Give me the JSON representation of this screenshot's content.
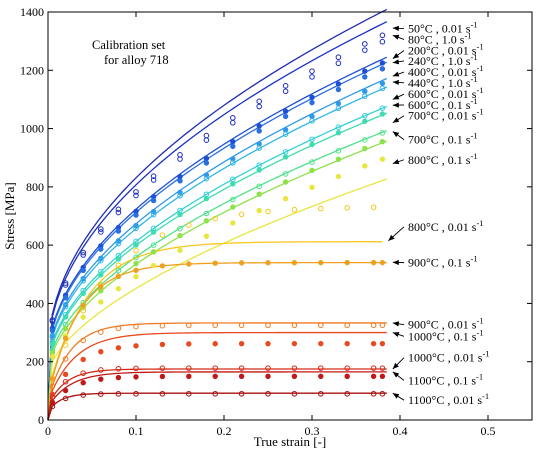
{
  "chart_data": {
    "type": "line",
    "title": "",
    "xlabel": "True strain [-]",
    "ylabel": "Stress [MPa]",
    "xlim": [
      0,
      0.55
    ],
    "ylim": [
      0,
      1400
    ],
    "xticks": [
      0,
      0.1,
      0.2,
      0.3,
      0.4,
      0.5
    ],
    "xtick_labels": [
      "0",
      "0.1",
      "0.2",
      "0.3",
      "0.4",
      "0.5"
    ],
    "yticks": [
      0,
      200,
      400,
      600,
      800,
      1000,
      1200,
      1400
    ],
    "ytick_labels": [
      "0",
      "200",
      "400",
      "600",
      "800",
      "1000",
      "1200",
      "1400"
    ],
    "grid": false,
    "legend": "annotations right",
    "note_lines": [
      "Calibration set",
      "for alloy 718"
    ],
    "series": [
      {
        "name": "50°C , 0.01 s-1",
        "label_main": "50°C , 0.01 s",
        "label_sup": "-1",
        "color": "#1f2bb0",
        "marker": "open",
        "model": {
          "type": "power",
          "s0": 230,
          "k": 1900,
          "n": 0.5
        },
        "model_end": [
          0.385,
          1345
        ],
        "exp_x": [
          0.005,
          0.02,
          0.04,
          0.06,
          0.08,
          0.1,
          0.12,
          0.15,
          0.18,
          0.21,
          0.24,
          0.27,
          0.3,
          0.33,
          0.36,
          0.38
        ],
        "exp_end": 1320,
        "label_y": 1343
      },
      {
        "name": "80°C , 1.0 s-1",
        "label_main": "80°C , 1.0 s",
        "label_sup": "-1",
        "color": "#1830c8",
        "marker": "open",
        "model": {
          "type": "power",
          "s0": 225,
          "k": 1840,
          "n": 0.5
        },
        "model_end": [
          0.385,
          1320
        ],
        "exp_x": [
          0.005,
          0.02,
          0.04,
          0.06,
          0.08,
          0.1,
          0.12,
          0.15,
          0.18,
          0.21,
          0.24,
          0.27,
          0.3,
          0.33,
          0.36,
          0.38
        ],
        "exp_end": 1298,
        "label_y": 1306
      },
      {
        "name": "200°C , 0.01 s-1",
        "label_main": "200°C , 0.01 s",
        "label_sup": "-1",
        "color": "#1f4fd6",
        "marker": "filled",
        "model": {
          "type": "power",
          "s0": 210,
          "k": 1700,
          "n": 0.52
        },
        "model_end": [
          0.385,
          1240
        ],
        "exp_x": [
          0.005,
          0.02,
          0.04,
          0.06,
          0.08,
          0.1,
          0.12,
          0.15,
          0.18,
          0.21,
          0.24,
          0.27,
          0.3,
          0.33,
          0.36,
          0.38
        ],
        "exp_end": 1225,
        "label_y": 1268
      },
      {
        "name": "240°C , 1.0 s-1",
        "label_main": "240°C , 1.0 s",
        "label_sup": "-1",
        "color": "#2a6fe0",
        "marker": "filled",
        "model": {
          "type": "power",
          "s0": 205,
          "k": 1680,
          "n": 0.52
        },
        "model_end": [
          0.385,
          1226
        ],
        "exp_x": [
          0.005,
          0.02,
          0.04,
          0.06,
          0.08,
          0.1,
          0.12,
          0.15,
          0.18,
          0.21,
          0.24,
          0.27,
          0.3,
          0.33,
          0.36,
          0.38
        ],
        "exp_end": 1205,
        "label_y": 1232
      },
      {
        "name": "400°C , 0.01 s-1",
        "label_main": "400°C , 0.01 s",
        "label_sup": "-1",
        "color": "#2f98e8",
        "marker": "filled",
        "model": {
          "type": "power",
          "s0": 195,
          "k": 1620,
          "n": 0.53
        },
        "model_end": [
          0.385,
          1180
        ],
        "exp_x": [
          0.005,
          0.02,
          0.04,
          0.06,
          0.08,
          0.1,
          0.12,
          0.15,
          0.18,
          0.21,
          0.24,
          0.27,
          0.3,
          0.33,
          0.36,
          0.38
        ],
        "exp_end": 1155,
        "label_y": 1194
      },
      {
        "name": "440°C , 1.0 s-1",
        "label_main": "440°C , 1.0 s",
        "label_sup": "-1",
        "color": "#31b6e6",
        "marker": "open",
        "model": {
          "type": "power",
          "s0": 190,
          "k": 1580,
          "n": 0.53
        },
        "model_end": [
          0.385,
          1160
        ],
        "exp_x": [
          0.005,
          0.02,
          0.04,
          0.06,
          0.08,
          0.1,
          0.12,
          0.15,
          0.18,
          0.21,
          0.24,
          0.27,
          0.3,
          0.33,
          0.36,
          0.38
        ],
        "exp_end": 1138,
        "label_y": 1157
      },
      {
        "name": "600°C , 0.01 s-1",
        "label_main": "600°C , 0.01 s",
        "label_sup": "-1",
        "color": "#33d0d6",
        "marker": "open",
        "model": {
          "type": "power",
          "s0": 180,
          "k": 1500,
          "n": 0.54
        },
        "model_end": [
          0.385,
          1100
        ],
        "exp_x": [
          0.005,
          0.02,
          0.04,
          0.06,
          0.08,
          0.1,
          0.12,
          0.15,
          0.18,
          0.21,
          0.24,
          0.27,
          0.3,
          0.33,
          0.36,
          0.38
        ],
        "exp_end": 1070,
        "label_y": 1118
      },
      {
        "name": "600°C , 0.1 s-1",
        "label_main": "600°C , 0.1 s",
        "label_sup": "-1",
        "color": "#3fdcb0",
        "marker": "filled",
        "model": {
          "type": "power",
          "s0": 175,
          "k": 1470,
          "n": 0.54
        },
        "model_end": [
          0.385,
          1080
        ],
        "exp_x": [
          0.005,
          0.02,
          0.04,
          0.06,
          0.08,
          0.1,
          0.12,
          0.15,
          0.18,
          0.21,
          0.24,
          0.27,
          0.3,
          0.33,
          0.36,
          0.38
        ],
        "exp_end": 1050,
        "label_y": 1081
      },
      {
        "name": "700°C , 0.01 s-1",
        "label_main": "700°C , 0.01 s",
        "label_sup": "-1",
        "color": "#4ee28a",
        "marker": "open",
        "model": {
          "type": "power",
          "s0": 165,
          "k": 1400,
          "n": 0.55
        },
        "model_end": [
          0.385,
          1020
        ],
        "exp_x": [
          0.005,
          0.02,
          0.04,
          0.06,
          0.08,
          0.1,
          0.12,
          0.15,
          0.18,
          0.21,
          0.24,
          0.27,
          0.3,
          0.33,
          0.36,
          0.38
        ],
        "exp_end": 985,
        "label_y": 1044
      },
      {
        "name": "700°C , 0.1 s-1",
        "label_main": "700°C , 0.1 s",
        "label_sup": "-1",
        "color": "#8de24a",
        "marker": "filled",
        "model": {
          "type": "power",
          "s0": 160,
          "k": 1360,
          "n": 0.56
        },
        "model_end": [
          0.385,
          990
        ],
        "exp_x": [
          0.005,
          0.02,
          0.04,
          0.06,
          0.08,
          0.1,
          0.12,
          0.15,
          0.18,
          0.21,
          0.24,
          0.27,
          0.3,
          0.33,
          0.36,
          0.38
        ],
        "exp_end": 955,
        "label_y": 962
      },
      {
        "name": "800°C , 0.1 s-1",
        "label_main": "800°C , 0.1 s",
        "label_sup": "-1",
        "color": "#e8e640",
        "marker": "filled",
        "model": {
          "type": "power",
          "s0": 150,
          "k": 1200,
          "n": 0.6
        },
        "model_end": [
          0.385,
          880
        ],
        "exp_x": [
          0.005,
          0.02,
          0.04,
          0.06,
          0.08,
          0.1,
          0.12,
          0.15,
          0.18,
          0.21,
          0.24,
          0.27,
          0.3,
          0.33,
          0.36,
          0.38
        ],
        "exp_end": 895,
        "label_y": 893
      },
      {
        "name": "800°C , 0.01 s-1",
        "label_main": "800°C , 0.01 s",
        "label_sup": "-1",
        "color": "#f7c81e",
        "marker": "open",
        "model": {
          "type": "sat",
          "s0": 100,
          "sat": 612,
          "eps": 0.045
        },
        "model_end": [
          0.38,
          615
        ],
        "exp_x": [
          0.005,
          0.02,
          0.04,
          0.06,
          0.08,
          0.1,
          0.13,
          0.16,
          0.19,
          0.22,
          0.25,
          0.28,
          0.31,
          0.34,
          0.37
        ],
        "exp_end": 730,
        "exp_model": {
          "type": "sat",
          "s0": 100,
          "sat": 740,
          "eps": 0.07
        },
        "label_y": 663
      },
      {
        "name": "900°C , 0.1 s-1",
        "label_main": "900°C , 0.1 s",
        "label_sup": "-1",
        "color": "#f0a020",
        "marker": "filled",
        "model": {
          "type": "sat",
          "s0": 80,
          "sat": 540,
          "eps": 0.035
        },
        "model_end": [
          0.385,
          541
        ],
        "exp_x": [
          0.005,
          0.02,
          0.04,
          0.06,
          0.08,
          0.1,
          0.13,
          0.16,
          0.19,
          0.22,
          0.25,
          0.28,
          0.31,
          0.34,
          0.37,
          0.38
        ],
        "exp_end": 540,
        "label_y": 540
      },
      {
        "name": "900°C , 0.01 s-1",
        "label_main": "900°C , 0.01 s",
        "label_sup": "-1",
        "color": "#f07a20",
        "marker": "open",
        "model": {
          "type": "sat",
          "s0": 70,
          "sat": 333,
          "eps": 0.025
        },
        "model_end": [
          0.385,
          333
        ],
        "exp_x": [
          0.005,
          0.02,
          0.04,
          0.06,
          0.08,
          0.1,
          0.13,
          0.16,
          0.19,
          0.22,
          0.25,
          0.28,
          0.31,
          0.34,
          0.37,
          0.38
        ],
        "exp_end": 325,
        "label_y": 327
      },
      {
        "name": "1000°C , 0.1 s-1",
        "label_main": "1000°C , 0.1 s",
        "label_sup": "-1",
        "color": "#e84a20",
        "marker": "filled",
        "model": {
          "type": "sat",
          "s0": 65,
          "sat": 300,
          "eps": 0.03
        },
        "model_end": [
          0.385,
          300
        ],
        "exp_x": [
          0.005,
          0.02,
          0.04,
          0.06,
          0.08,
          0.1,
          0.13,
          0.16,
          0.19,
          0.22,
          0.25,
          0.28,
          0.31,
          0.34,
          0.37,
          0.38
        ],
        "exp_end": 262,
        "label_y": 287
      },
      {
        "name": "1000°C , 0.01 s-1",
        "label_main": "1000°C , 0.01 s",
        "label_sup": "-1",
        "color": "#d42a18",
        "marker": "open",
        "model": {
          "type": "sat",
          "s0": 50,
          "sat": 175,
          "eps": 0.02
        },
        "model_end": [
          0.385,
          175
        ],
        "exp_x": [
          0.005,
          0.02,
          0.04,
          0.06,
          0.08,
          0.1,
          0.13,
          0.16,
          0.19,
          0.22,
          0.25,
          0.28,
          0.31,
          0.34,
          0.37,
          0.38
        ],
        "exp_end": 178,
        "label_y": 214
      },
      {
        "name": "1100°C , 0.1 s-1",
        "label_main": "1100°C , 0.1 s",
        "label_sup": "-1",
        "color": "#c01818",
        "marker": "filled",
        "model": {
          "type": "sat",
          "s0": 45,
          "sat": 165,
          "eps": 0.025
        },
        "model_end": [
          0.385,
          165
        ],
        "exp_x": [
          0.005,
          0.02,
          0.04,
          0.06,
          0.08,
          0.1,
          0.13,
          0.16,
          0.19,
          0.22,
          0.25,
          0.28,
          0.31,
          0.34,
          0.37,
          0.38
        ],
        "exp_end": 150,
        "label_y": 136
      },
      {
        "name": "1100°C , 0.01 s-1",
        "label_main": "1100°C , 0.01 s",
        "label_sup": "-1",
        "color": "#a81010",
        "marker": "open",
        "model": {
          "type": "sat",
          "s0": 30,
          "sat": 92,
          "eps": 0.015
        },
        "model_end": [
          0.385,
          92
        ],
        "exp_x": [
          0.005,
          0.02,
          0.04,
          0.06,
          0.08,
          0.1,
          0.13,
          0.16,
          0.19,
          0.22,
          0.25,
          0.28,
          0.31,
          0.34,
          0.37,
          0.38
        ],
        "exp_end": 90,
        "label_y": 68
      }
    ]
  }
}
